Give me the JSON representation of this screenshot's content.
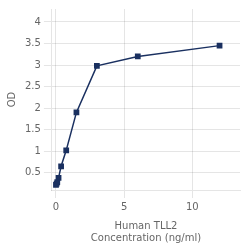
{
  "chart_data": {
    "type": "line",
    "x": [
      0.0,
      0.047,
      0.094,
      0.188,
      0.375,
      0.75,
      1.5,
      3.0,
      6.0,
      12.0
    ],
    "values": [
      0.22,
      0.25,
      0.28,
      0.38,
      0.65,
      1.02,
      1.9,
      2.98,
      3.2,
      3.45
    ],
    "color": "#1a3060",
    "marker": "square",
    "xlabel": [
      "Human TLL2",
      "Concentration (ng/ml)"
    ],
    "ylabel": "OD",
    "xlim": [
      -0.3,
      13.5
    ],
    "xticks": [
      0,
      5,
      10
    ],
    "ylim": [
      0.1,
      4.3
    ],
    "yticks": [
      0.5,
      1,
      1.5,
      2,
      2.5,
      3,
      3.5,
      4
    ],
    "grid": true
  }
}
